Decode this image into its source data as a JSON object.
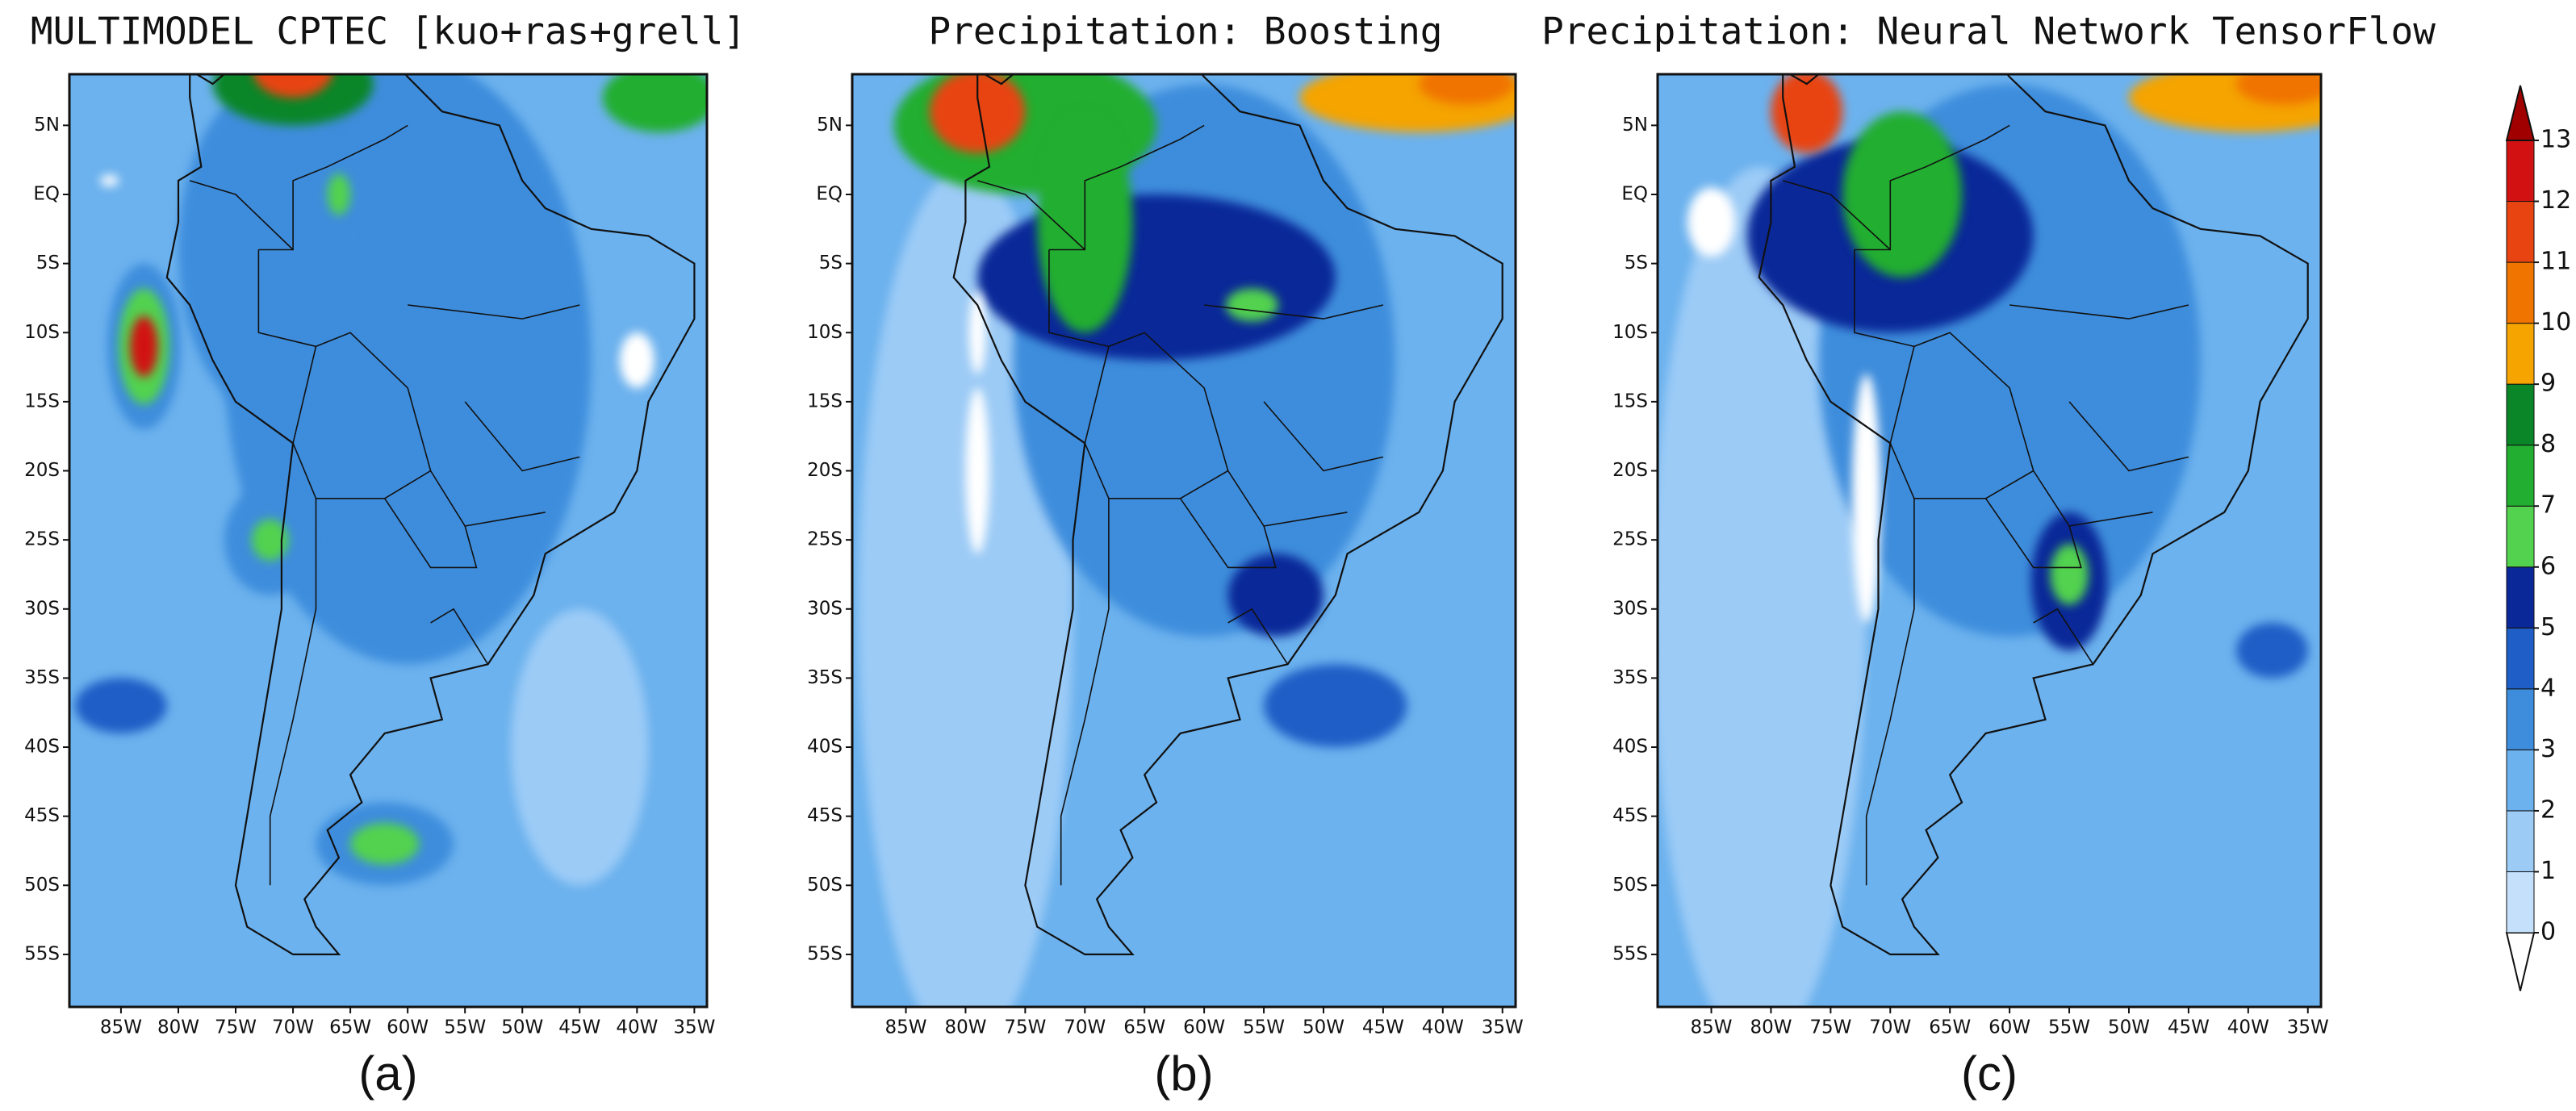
{
  "panels": [
    {
      "title": "MULTIMODEL CPTEC [kuo+ras+grell]",
      "caption": "(a)"
    },
    {
      "title": "Precipitation: Boosting",
      "caption": "(b)"
    },
    {
      "title": "Precipitation: Neural Network TensorFlow",
      "caption": "(c)"
    }
  ],
  "lat_labels": [
    "5N",
    "EQ",
    "5S",
    "10S",
    "15S",
    "20S",
    "25S",
    "30S",
    "35S",
    "40S",
    "45S",
    "50S",
    "55S"
  ],
  "lon_labels": [
    "85W",
    "80W",
    "75W",
    "70W",
    "65W",
    "60W",
    "55W",
    "50W",
    "45W",
    "40W",
    "35W"
  ],
  "colorbar": {
    "labels": [
      0,
      1,
      2,
      3,
      4,
      5,
      6,
      7,
      8,
      9,
      10,
      11,
      12,
      13
    ],
    "colors": [
      "#ffffff",
      "#c4e0fa",
      "#9ccbf6",
      "#6cb2ee",
      "#3e8ddc",
      "#1e5ec6",
      "#0a2898",
      "#52d24e",
      "#22ae30",
      "#0a8628",
      "#f5a400",
      "#f07400",
      "#e84412",
      "#d21212",
      "#a00000"
    ]
  }
}
